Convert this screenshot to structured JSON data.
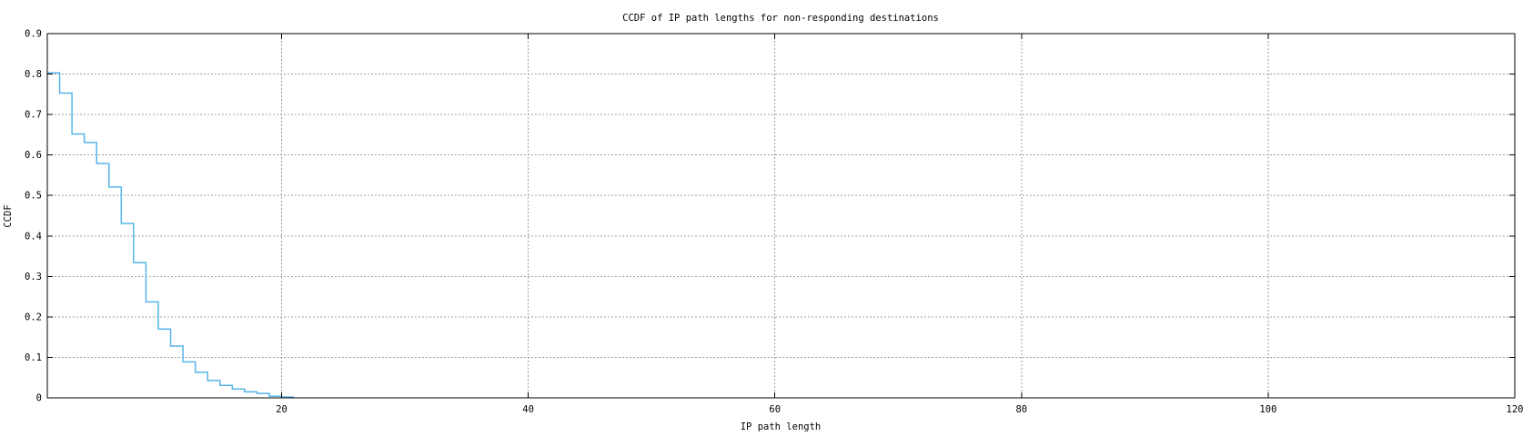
{
  "chart_data": {
    "type": "line",
    "line_style": "steps",
    "title": "CCDF of IP path lengths for non-responding destinations",
    "xlabel": "IP path length",
    "ylabel": "CCDF",
    "xlim": [
      1,
      120
    ],
    "ylim": [
      0,
      0.9
    ],
    "x_ticks": {
      "values": [
        20,
        40,
        60,
        80,
        100,
        120
      ],
      "labels": [
        "20",
        "40",
        "60",
        "80",
        "100",
        "120"
      ]
    },
    "y_ticks": {
      "values": [
        0,
        0.1,
        0.2,
        0.3,
        0.4,
        0.5,
        0.6,
        0.7,
        0.8,
        0.9
      ],
      "labels": [
        "0",
        "0.1",
        "0.2",
        "0.3",
        "0.4",
        "0.5",
        "0.6",
        "0.7",
        "0.8",
        "0.9"
      ]
    },
    "grid": "dashed-gray",
    "legend": "none",
    "colors": {
      "line": "#56b4e9",
      "grid": "#9c9c9c",
      "axis": "#000000",
      "background": "#ffffff"
    },
    "series": [
      {
        "name": "CCDF",
        "x": [
          1,
          2,
          3,
          4,
          5,
          6,
          7,
          8,
          9,
          10,
          11,
          12,
          13,
          14,
          15,
          16,
          17,
          18,
          19,
          20,
          21
        ],
        "y": [
          0.803,
          0.753,
          0.652,
          0.631,
          0.579,
          0.521,
          0.431,
          0.334,
          0.237,
          0.17,
          0.128,
          0.089,
          0.063,
          0.043,
          0.031,
          0.022,
          0.015,
          0.011,
          0.004,
          0.002,
          0.002
        ]
      }
    ]
  }
}
